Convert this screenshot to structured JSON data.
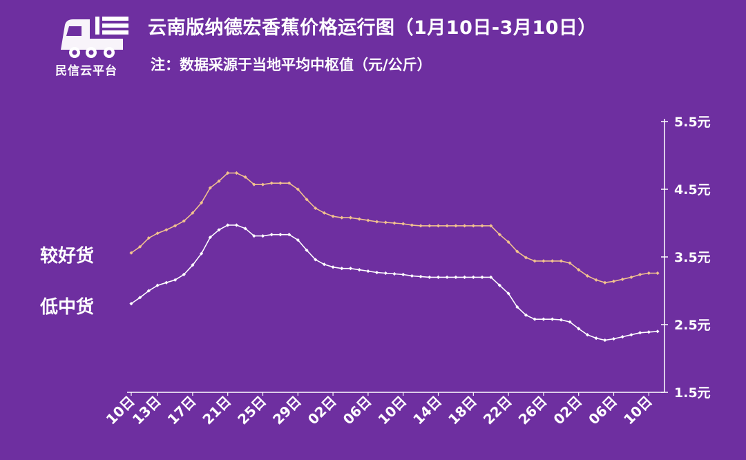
{
  "header": {
    "logo_text": "民信云平台",
    "title": "云南版纳德宏香蕉价格运行图（1月10日-3月10日）",
    "subtitle": "注：数据采源于当地平均中枢值（元/公斤）"
  },
  "colors": {
    "background": "#6e2fa0",
    "series_good": "#f2c28e",
    "series_low": "#ffffff",
    "axis": "#ffffff"
  },
  "chart_data": {
    "type": "line",
    "title": "云南版纳德宏香蕉价格运行图（1月10日-3月10日）",
    "ylabel": "",
    "ylim": [
      1.5,
      5.5
    ],
    "yticks": [
      "5.5元",
      "4.5元",
      "3.5元",
      "2.5元",
      "1.5元"
    ],
    "ytick_values": [
      5.5,
      4.5,
      3.5,
      2.5,
      1.5
    ],
    "x_tick_labels": [
      "10日",
      "13日",
      "17日",
      "21日",
      "25日",
      "29日",
      "02日",
      "06日",
      "10日",
      "14日",
      "18日",
      "22日",
      "26日",
      "02日",
      "06日",
      "10日"
    ],
    "x_tick_index": [
      0,
      3,
      7,
      11,
      15,
      19,
      23,
      27,
      31,
      35,
      39,
      43,
      47,
      51,
      55,
      59
    ],
    "n_points": 61,
    "series": [
      {
        "name": "较好货",
        "values": [
          3.56,
          3.65,
          3.78,
          3.85,
          3.9,
          3.96,
          4.03,
          4.15,
          4.3,
          4.52,
          4.62,
          4.74,
          4.74,
          4.68,
          4.57,
          4.57,
          4.59,
          4.59,
          4.59,
          4.5,
          4.35,
          4.22,
          4.15,
          4.1,
          4.08,
          4.08,
          4.06,
          4.04,
          4.02,
          4.01,
          4,
          3.99,
          3.97,
          3.96,
          3.96,
          3.96,
          3.96,
          3.96,
          3.96,
          3.96,
          3.96,
          3.96,
          3.83,
          3.72,
          3.58,
          3.49,
          3.44,
          3.44,
          3.44,
          3.44,
          3.41,
          3.31,
          3.22,
          3.16,
          3.12,
          3.14,
          3.17,
          3.2,
          3.24,
          3.26,
          3.26
        ]
      },
      {
        "name": "低中货",
        "values": [
          2.81,
          2.9,
          3,
          3.08,
          3.12,
          3.16,
          3.24,
          3.38,
          3.55,
          3.79,
          3.9,
          3.97,
          3.97,
          3.92,
          3.81,
          3.81,
          3.83,
          3.83,
          3.83,
          3.75,
          3.6,
          3.46,
          3.39,
          3.35,
          3.33,
          3.33,
          3.31,
          3.29,
          3.27,
          3.26,
          3.25,
          3.24,
          3.22,
          3.21,
          3.2,
          3.2,
          3.2,
          3.2,
          3.2,
          3.2,
          3.2,
          3.2,
          3.08,
          2.96,
          2.76,
          2.64,
          2.58,
          2.58,
          2.58,
          2.57,
          2.54,
          2.44,
          2.35,
          2.3,
          2.27,
          2.29,
          2.32,
          2.35,
          2.38,
          2.39,
          2.4
        ]
      }
    ]
  }
}
